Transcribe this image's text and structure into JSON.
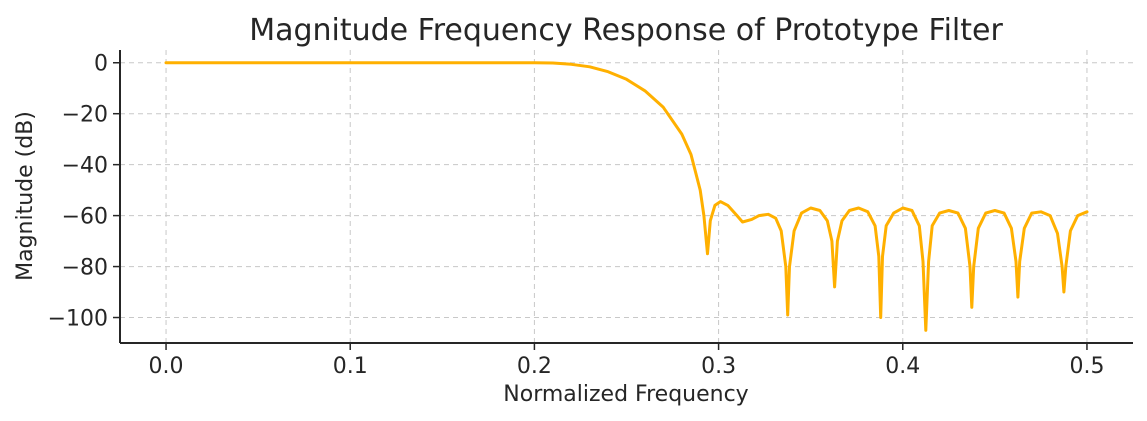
{
  "chart_data": {
    "type": "line",
    "title": "Magnitude Frequency Response of Prototype Filter",
    "xlabel": "Normalized Frequency",
    "ylabel": "Magnitude (dB)",
    "xlim": [
      -0.025,
      0.525
    ],
    "ylim": [
      -110,
      5
    ],
    "xticks": [
      0.0,
      0.1,
      0.2,
      0.3,
      0.4,
      0.5
    ],
    "xtick_labels": [
      "0.0",
      "0.1",
      "0.2",
      "0.3",
      "0.4",
      "0.5"
    ],
    "yticks": [
      0,
      -20,
      -40,
      -60,
      -80,
      -100
    ],
    "ytick_labels": [
      "0",
      "−20",
      "−40",
      "−60",
      "−80",
      "−100"
    ],
    "grid": true,
    "grid_style": "dashed",
    "color": "#FFB000",
    "series": [
      {
        "points": [
          [
            0.0,
            0
          ],
          [
            0.05,
            0
          ],
          [
            0.1,
            0
          ],
          [
            0.15,
            0
          ],
          [
            0.2,
            0
          ],
          [
            0.21,
            -0.1
          ],
          [
            0.22,
            -0.6
          ],
          [
            0.23,
            -1.6
          ],
          [
            0.24,
            -3.5
          ],
          [
            0.25,
            -6.5
          ],
          [
            0.26,
            -11
          ],
          [
            0.27,
            -17.5
          ],
          [
            0.28,
            -28
          ],
          [
            0.285,
            -36
          ],
          [
            0.29,
            -50
          ],
          [
            0.292,
            -60
          ],
          [
            0.294,
            -75
          ],
          [
            0.2955,
            -62
          ],
          [
            0.298,
            -56
          ],
          [
            0.301,
            -54.5
          ],
          [
            0.305,
            -56
          ],
          [
            0.31,
            -60
          ],
          [
            0.313,
            -62.5
          ],
          [
            0.318,
            -61.5
          ],
          [
            0.322,
            -60
          ],
          [
            0.327,
            -59.5
          ],
          [
            0.331,
            -61
          ],
          [
            0.334,
            -66
          ],
          [
            0.3365,
            -80
          ],
          [
            0.3375,
            -99
          ],
          [
            0.3385,
            -80
          ],
          [
            0.341,
            -66
          ],
          [
            0.345,
            -59
          ],
          [
            0.35,
            -57
          ],
          [
            0.355,
            -58
          ],
          [
            0.359,
            -62
          ],
          [
            0.3615,
            -70
          ],
          [
            0.363,
            -88
          ],
          [
            0.3645,
            -70
          ],
          [
            0.367,
            -62
          ],
          [
            0.371,
            -58
          ],
          [
            0.376,
            -57
          ],
          [
            0.381,
            -58.5
          ],
          [
            0.385,
            -64
          ],
          [
            0.387,
            -76
          ],
          [
            0.388,
            -100
          ],
          [
            0.389,
            -76
          ],
          [
            0.391,
            -64
          ],
          [
            0.395,
            -59
          ],
          [
            0.4,
            -57
          ],
          [
            0.405,
            -58
          ],
          [
            0.409,
            -64
          ],
          [
            0.411,
            -78
          ],
          [
            0.4125,
            -105
          ],
          [
            0.414,
            -78
          ],
          [
            0.416,
            -64
          ],
          [
            0.42,
            -59
          ],
          [
            0.425,
            -58
          ],
          [
            0.43,
            -59
          ],
          [
            0.434,
            -65
          ],
          [
            0.4365,
            -80
          ],
          [
            0.4375,
            -96
          ],
          [
            0.4385,
            -80
          ],
          [
            0.441,
            -65
          ],
          [
            0.445,
            -59
          ],
          [
            0.45,
            -58
          ],
          [
            0.455,
            -59
          ],
          [
            0.459,
            -65
          ],
          [
            0.4615,
            -78
          ],
          [
            0.4625,
            -92
          ],
          [
            0.4635,
            -78
          ],
          [
            0.466,
            -65
          ],
          [
            0.47,
            -59
          ],
          [
            0.475,
            -58.5
          ],
          [
            0.48,
            -60
          ],
          [
            0.484,
            -67
          ],
          [
            0.4865,
            -80
          ],
          [
            0.4875,
            -90
          ],
          [
            0.4885,
            -80
          ],
          [
            0.491,
            -66
          ],
          [
            0.495,
            -60
          ],
          [
            0.5,
            -58.5
          ]
        ]
      }
    ]
  }
}
